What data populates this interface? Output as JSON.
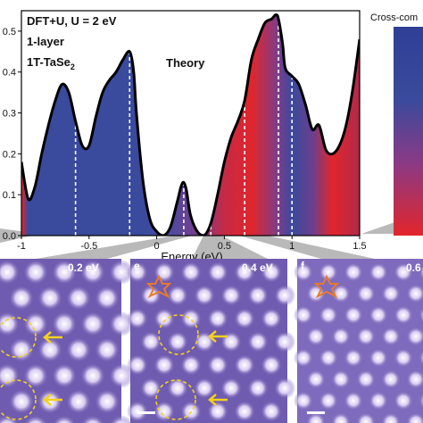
{
  "annotation": {
    "line1": "DFT+U, U = 2 eV",
    "line2": "1-layer",
    "line3": "1T-TaSe",
    "line3_sub": "2",
    "theory": "Theory"
  },
  "colorbar_title": "Cross-com",
  "panels": [
    {
      "letter": "",
      "energy": "0.2 eV"
    },
    {
      "letter": "e",
      "energy": "0.4 eV"
    },
    {
      "letter": "f",
      "energy": "0.6"
    }
  ],
  "colors": {
    "blue": "#3a4a9c",
    "purple": "#7a3d8c",
    "red": "#e2252b",
    "stm_bg": "#6f5bb0",
    "star": "#e87a2a",
    "marker": "#f2d21b"
  },
  "chart_data": {
    "type": "area",
    "xlabel": "Energy (eV)",
    "ylabel": "",
    "xlim": [
      -1,
      1.5
    ],
    "ylim": [
      0,
      0.55
    ],
    "xticks": [
      -1,
      -0.5,
      0,
      0.5,
      1,
      1.5
    ],
    "xtick_labels": [
      "-1",
      "-0.5",
      "0",
      "0.5",
      "1",
      "1.5"
    ],
    "yticks": [
      0,
      0.1,
      0.2,
      0.3,
      0.4,
      0.5
    ],
    "ytick_labels": [
      "0.0",
      "0.1",
      "0.2",
      "0.3",
      "0.4",
      "0.5"
    ],
    "x": [
      -1.0,
      -0.95,
      -0.9,
      -0.85,
      -0.8,
      -0.75,
      -0.7,
      -0.65,
      -0.6,
      -0.55,
      -0.5,
      -0.45,
      -0.4,
      -0.35,
      -0.3,
      -0.25,
      -0.2,
      -0.17,
      -0.15,
      -0.1,
      -0.05,
      0.0,
      0.05,
      0.1,
      0.15,
      0.18,
      0.2,
      0.22,
      0.25,
      0.3,
      0.35,
      0.4,
      0.45,
      0.5,
      0.55,
      0.6,
      0.65,
      0.7,
      0.75,
      0.8,
      0.85,
      0.88,
      0.9,
      0.93,
      0.95,
      1.0,
      1.05,
      1.1,
      1.15,
      1.2,
      1.25,
      1.3,
      1.35,
      1.4,
      1.45,
      1.5
    ],
    "y": [
      0.18,
      0.09,
      0.12,
      0.2,
      0.27,
      0.33,
      0.37,
      0.35,
      0.28,
      0.22,
      0.22,
      0.29,
      0.35,
      0.38,
      0.4,
      0.43,
      0.45,
      0.4,
      0.3,
      0.13,
      0.04,
      0.01,
      0.0,
      0.02,
      0.08,
      0.12,
      0.13,
      0.11,
      0.05,
      0.01,
      0.0,
      0.03,
      0.1,
      0.18,
      0.24,
      0.28,
      0.33,
      0.43,
      0.48,
      0.52,
      0.53,
      0.54,
      0.53,
      0.47,
      0.41,
      0.39,
      0.37,
      0.32,
      0.26,
      0.27,
      0.21,
      0.2,
      0.22,
      0.27,
      0.36,
      0.48
    ],
    "dashed_markers": [
      -0.6,
      -0.2,
      0.2,
      0.4,
      0.65,
      0.9,
      1.0
    ]
  }
}
